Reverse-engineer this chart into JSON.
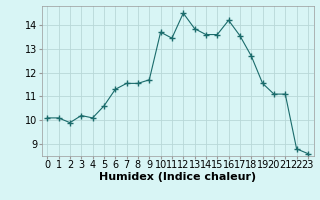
{
  "x": [
    0,
    1,
    2,
    3,
    4,
    5,
    6,
    7,
    8,
    9,
    10,
    11,
    12,
    13,
    14,
    15,
    16,
    17,
    18,
    19,
    20,
    21,
    22,
    23
  ],
  "y": [
    10.1,
    10.1,
    9.9,
    10.2,
    10.1,
    10.6,
    11.3,
    11.55,
    11.55,
    11.7,
    13.7,
    13.45,
    14.5,
    13.85,
    13.6,
    13.6,
    14.2,
    13.55,
    12.7,
    11.55,
    11.1,
    11.1,
    8.8,
    8.6
  ],
  "line_color": "#1a6b6b",
  "marker": "+",
  "marker_size": 4,
  "bg_color": "#d8f5f5",
  "grid_color": "#b8d8d8",
  "xlabel": "Humidex (Indice chaleur)",
  "xlabel_fontsize": 8,
  "tick_fontsize": 7,
  "ylim": [
    8.5,
    14.8
  ],
  "xlim": [
    -0.5,
    23.5
  ],
  "yticks": [
    9,
    10,
    11,
    12,
    13,
    14
  ],
  "xticks": [
    0,
    1,
    2,
    3,
    4,
    5,
    6,
    7,
    8,
    9,
    10,
    11,
    12,
    13,
    14,
    15,
    16,
    17,
    18,
    19,
    20,
    21,
    22,
    23
  ]
}
